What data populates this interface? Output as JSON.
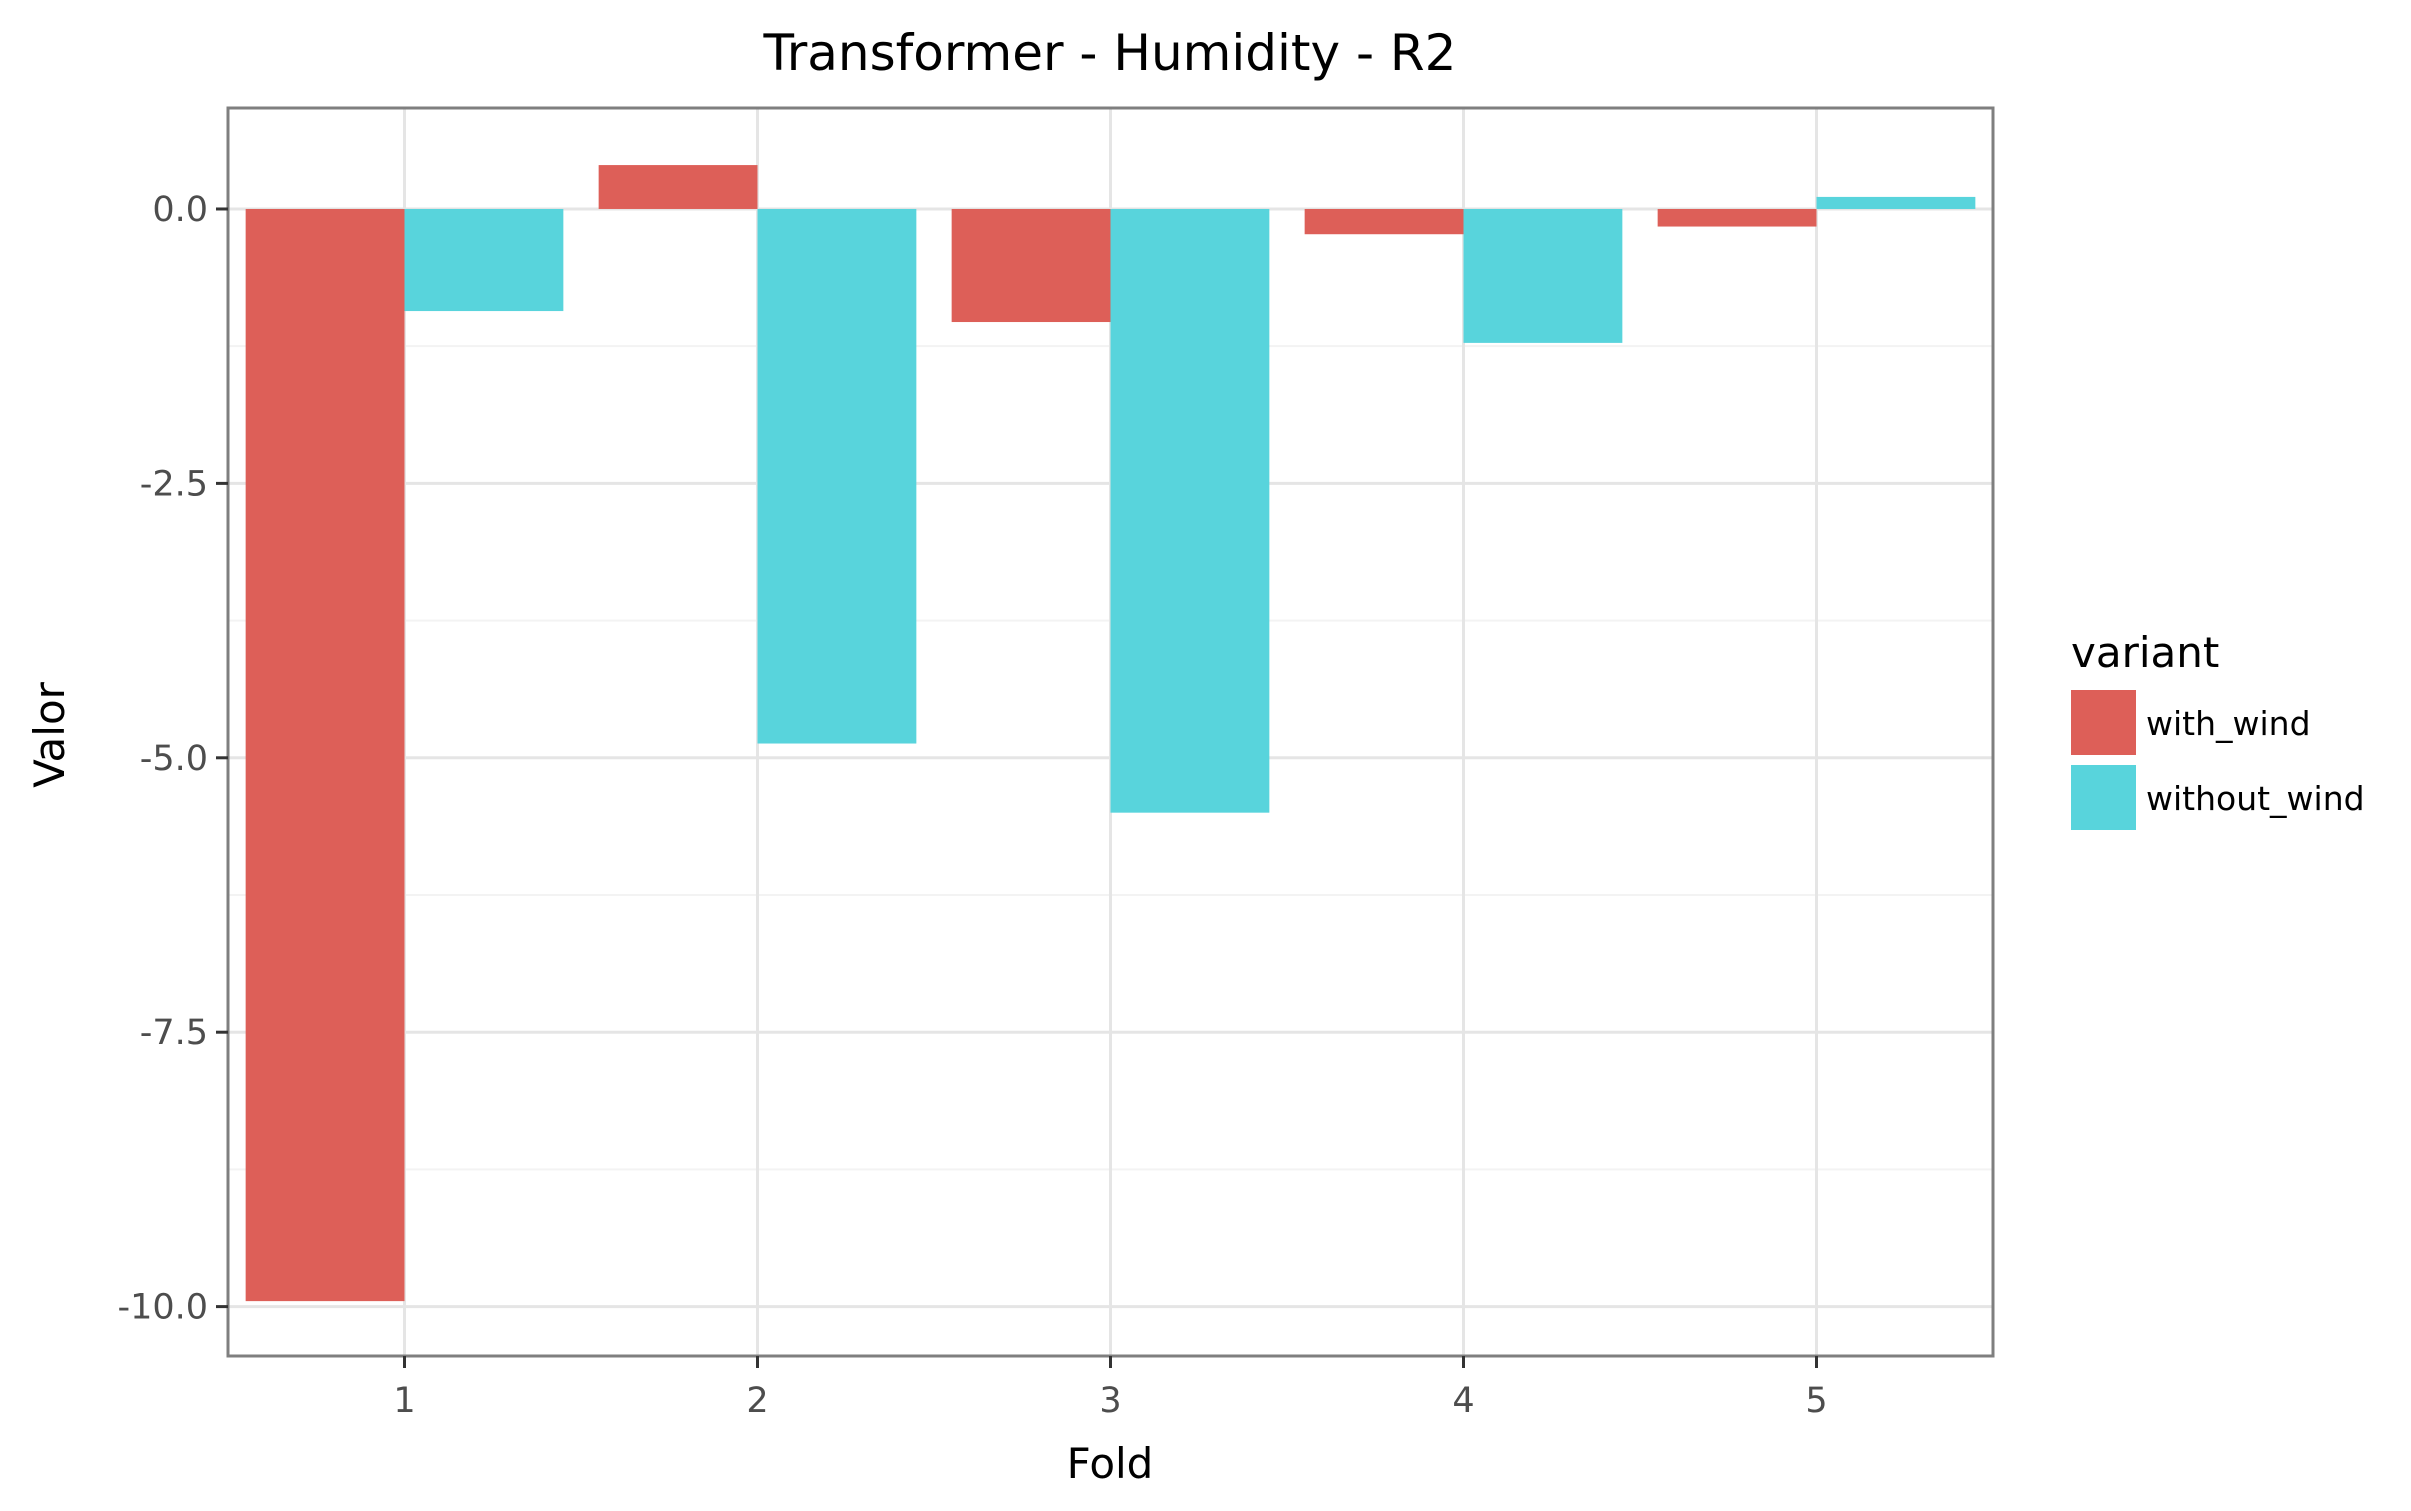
{
  "chart_data": {
    "type": "bar",
    "title": "Transformer - Humidity - R2",
    "xlabel": "Fold",
    "ylabel": "Valor",
    "categories": [
      "1",
      "2",
      "3",
      "4",
      "5"
    ],
    "series": [
      {
        "name": "with_wind",
        "color": "#dd5f58",
        "values": [
          -9.95,
          0.4,
          -1.03,
          -0.23,
          -0.16
        ]
      },
      {
        "name": "without_wind",
        "color": "#58d4dc",
        "values": [
          -0.93,
          -4.87,
          -5.5,
          -1.22,
          0.11
        ]
      }
    ],
    "ylim": [
      -10.45,
      0.92
    ],
    "yticks": [
      0.0,
      -2.5,
      -5.0,
      -7.5,
      -10.0
    ],
    "ytick_labels": [
      "0.0",
      "-2.5",
      "-5.0",
      "-7.5",
      "-10.0"
    ],
    "grid": true,
    "legend": {
      "title": "variant",
      "position": "right"
    }
  }
}
